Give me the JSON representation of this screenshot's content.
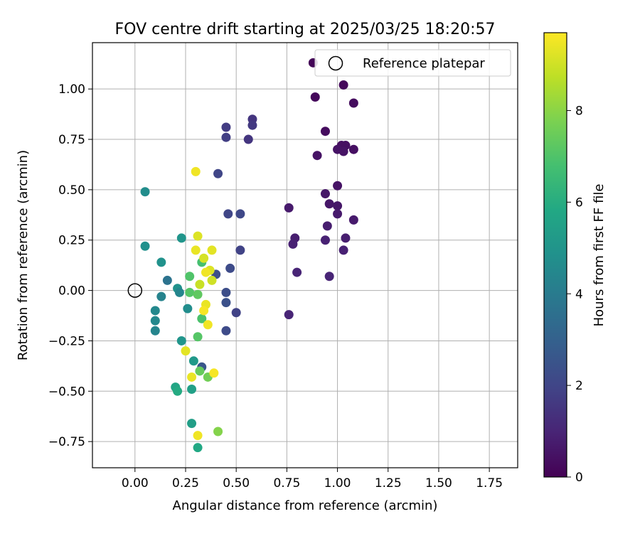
{
  "chart_data": {
    "type": "scatter",
    "title": "FOV centre drift starting at 2025/03/25 18:20:57",
    "xlabel": "Angular distance from reference (arcmin)",
    "ylabel": "Rotation from reference (arcmin)",
    "colorbar_label": "Hours from first FF file",
    "xlim": [
      -0.21,
      1.89
    ],
    "ylim": [
      -0.88,
      1.23
    ],
    "xticks": [
      0.0,
      0.25,
      0.5,
      0.75,
      1.0,
      1.25,
      1.5,
      1.75
    ],
    "xtick_labels": [
      "0.00",
      "0.25",
      "0.50",
      "0.75",
      "1.00",
      "1.25",
      "1.50",
      "1.75"
    ],
    "yticks": [
      -0.75,
      -0.5,
      -0.25,
      0.0,
      0.25,
      0.5,
      0.75,
      1.0
    ],
    "ytick_labels": [
      "−0.75",
      "−0.50",
      "−0.25",
      "0.00",
      "0.25",
      "0.50",
      "0.75",
      "1.00"
    ],
    "colorbar_range": [
      0,
      9.7
    ],
    "colorbar_ticks": [
      0,
      2,
      4,
      6,
      8
    ],
    "colorbar_tick_labels": [
      "0",
      "2",
      "4",
      "6",
      "8"
    ],
    "colormap": "viridis",
    "grid": true,
    "legend_position": "top-right",
    "legend": [
      {
        "label": "Reference platepar",
        "marker": "open-circle"
      }
    ],
    "reference_point": {
      "x": 0.0,
      "y": 0.0
    },
    "points": [
      {
        "x": 0.88,
        "y": 1.13,
        "t": 0.1
      },
      {
        "x": 1.03,
        "y": 1.02,
        "t": 0.2
      },
      {
        "x": 0.89,
        "y": 0.96,
        "t": 0.2
      },
      {
        "x": 1.08,
        "y": 0.93,
        "t": 0.3
      },
      {
        "x": 0.94,
        "y": 0.79,
        "t": 0.3
      },
      {
        "x": 1.04,
        "y": 0.72,
        "t": 0.4
      },
      {
        "x": 1.02,
        "y": 0.72,
        "t": 0.4
      },
      {
        "x": 1.08,
        "y": 0.7,
        "t": 0.4
      },
      {
        "x": 1.0,
        "y": 0.7,
        "t": 0.5
      },
      {
        "x": 1.03,
        "y": 0.69,
        "t": 0.5
      },
      {
        "x": 0.9,
        "y": 0.67,
        "t": 0.5
      },
      {
        "x": 1.0,
        "y": 0.52,
        "t": 0.5
      },
      {
        "x": 0.94,
        "y": 0.48,
        "t": 0.6
      },
      {
        "x": 0.96,
        "y": 0.43,
        "t": 0.6
      },
      {
        "x": 1.0,
        "y": 0.42,
        "t": 0.6
      },
      {
        "x": 0.76,
        "y": 0.41,
        "t": 0.7
      },
      {
        "x": 1.0,
        "y": 0.38,
        "t": 0.7
      },
      {
        "x": 1.08,
        "y": 0.35,
        "t": 0.7
      },
      {
        "x": 0.95,
        "y": 0.32,
        "t": 0.8
      },
      {
        "x": 0.79,
        "y": 0.26,
        "t": 0.8
      },
      {
        "x": 1.04,
        "y": 0.26,
        "t": 0.8
      },
      {
        "x": 0.94,
        "y": 0.25,
        "t": 0.9
      },
      {
        "x": 0.78,
        "y": 0.23,
        "t": 0.9
      },
      {
        "x": 1.03,
        "y": 0.2,
        "t": 0.9
      },
      {
        "x": 0.8,
        "y": 0.09,
        "t": 1.0
      },
      {
        "x": 0.96,
        "y": 0.07,
        "t": 1.0
      },
      {
        "x": 0.76,
        "y": -0.12,
        "t": 1.0
      },
      {
        "x": 0.58,
        "y": 0.85,
        "t": 1.5
      },
      {
        "x": 0.58,
        "y": 0.82,
        "t": 1.6
      },
      {
        "x": 0.45,
        "y": 0.81,
        "t": 1.7
      },
      {
        "x": 0.45,
        "y": 0.76,
        "t": 1.8
      },
      {
        "x": 0.56,
        "y": 0.75,
        "t": 1.5
      },
      {
        "x": 0.41,
        "y": 0.58,
        "t": 2.0
      },
      {
        "x": 0.46,
        "y": 0.38,
        "t": 2.0
      },
      {
        "x": 0.52,
        "y": 0.38,
        "t": 2.1
      },
      {
        "x": 0.52,
        "y": 0.2,
        "t": 1.9
      },
      {
        "x": 0.47,
        "y": 0.11,
        "t": 2.2
      },
      {
        "x": 0.4,
        "y": 0.08,
        "t": 2.3
      },
      {
        "x": 0.45,
        "y": -0.01,
        "t": 2.3
      },
      {
        "x": 0.45,
        "y": -0.06,
        "t": 2.4
      },
      {
        "x": 0.5,
        "y": -0.11,
        "t": 1.9
      },
      {
        "x": 0.45,
        "y": -0.2,
        "t": 2.2
      },
      {
        "x": 0.33,
        "y": -0.38,
        "t": 2.6
      },
      {
        "x": 0.05,
        "y": 0.49,
        "t": 4.7
      },
      {
        "x": 0.05,
        "y": 0.22,
        "t": 4.8
      },
      {
        "x": 0.23,
        "y": 0.26,
        "t": 5.0
      },
      {
        "x": 0.13,
        "y": 0.14,
        "t": 4.9
      },
      {
        "x": 0.16,
        "y": 0.05,
        "t": 3.7
      },
      {
        "x": 0.21,
        "y": 0.01,
        "t": 4.9
      },
      {
        "x": 0.22,
        "y": -0.01,
        "t": 4.4
      },
      {
        "x": 0.13,
        "y": -0.03,
        "t": 4.3
      },
      {
        "x": 0.1,
        "y": -0.1,
        "t": 4.5
      },
      {
        "x": 0.26,
        "y": -0.09,
        "t": 4.7
      },
      {
        "x": 0.1,
        "y": -0.15,
        "t": 4.5
      },
      {
        "x": 0.1,
        "y": -0.2,
        "t": 4.4
      },
      {
        "x": 0.23,
        "y": -0.25,
        "t": 5.0
      },
      {
        "x": 0.29,
        "y": -0.35,
        "t": 5.2
      },
      {
        "x": 0.2,
        "y": -0.48,
        "t": 5.7
      },
      {
        "x": 0.21,
        "y": -0.5,
        "t": 5.9
      },
      {
        "x": 0.28,
        "y": -0.49,
        "t": 5.5
      },
      {
        "x": 0.28,
        "y": -0.66,
        "t": 5.4
      },
      {
        "x": 0.31,
        "y": -0.78,
        "t": 5.8
      },
      {
        "x": 0.33,
        "y": 0.14,
        "t": 6.8
      },
      {
        "x": 0.27,
        "y": 0.07,
        "t": 7.0
      },
      {
        "x": 0.27,
        "y": -0.01,
        "t": 7.1
      },
      {
        "x": 0.31,
        "y": -0.02,
        "t": 7.3
      },
      {
        "x": 0.33,
        "y": -0.14,
        "t": 6.9
      },
      {
        "x": 0.31,
        "y": -0.23,
        "t": 7.1
      },
      {
        "x": 0.32,
        "y": -0.4,
        "t": 7.4
      },
      {
        "x": 0.36,
        "y": -0.43,
        "t": 7.6
      },
      {
        "x": 0.41,
        "y": -0.7,
        "t": 7.9
      },
      {
        "x": 0.3,
        "y": 0.59,
        "t": 9.5
      },
      {
        "x": 0.31,
        "y": 0.27,
        "t": 9.2
      },
      {
        "x": 0.3,
        "y": 0.2,
        "t": 9.4
      },
      {
        "x": 0.38,
        "y": 0.2,
        "t": 9.3
      },
      {
        "x": 0.34,
        "y": 0.16,
        "t": 9.1
      },
      {
        "x": 0.37,
        "y": 0.1,
        "t": 9.2
      },
      {
        "x": 0.35,
        "y": 0.09,
        "t": 9.5
      },
      {
        "x": 0.38,
        "y": 0.05,
        "t": 9.0
      },
      {
        "x": 0.32,
        "y": 0.03,
        "t": 8.9
      },
      {
        "x": 0.35,
        "y": -0.07,
        "t": 9.4
      },
      {
        "x": 0.34,
        "y": -0.1,
        "t": 9.6
      },
      {
        "x": 0.36,
        "y": -0.17,
        "t": 9.5
      },
      {
        "x": 0.25,
        "y": -0.3,
        "t": 9.3
      },
      {
        "x": 0.28,
        "y": -0.43,
        "t": 9.4
      },
      {
        "x": 0.39,
        "y": -0.41,
        "t": 9.6
      },
      {
        "x": 0.31,
        "y": -0.72,
        "t": 9.5
      }
    ]
  }
}
